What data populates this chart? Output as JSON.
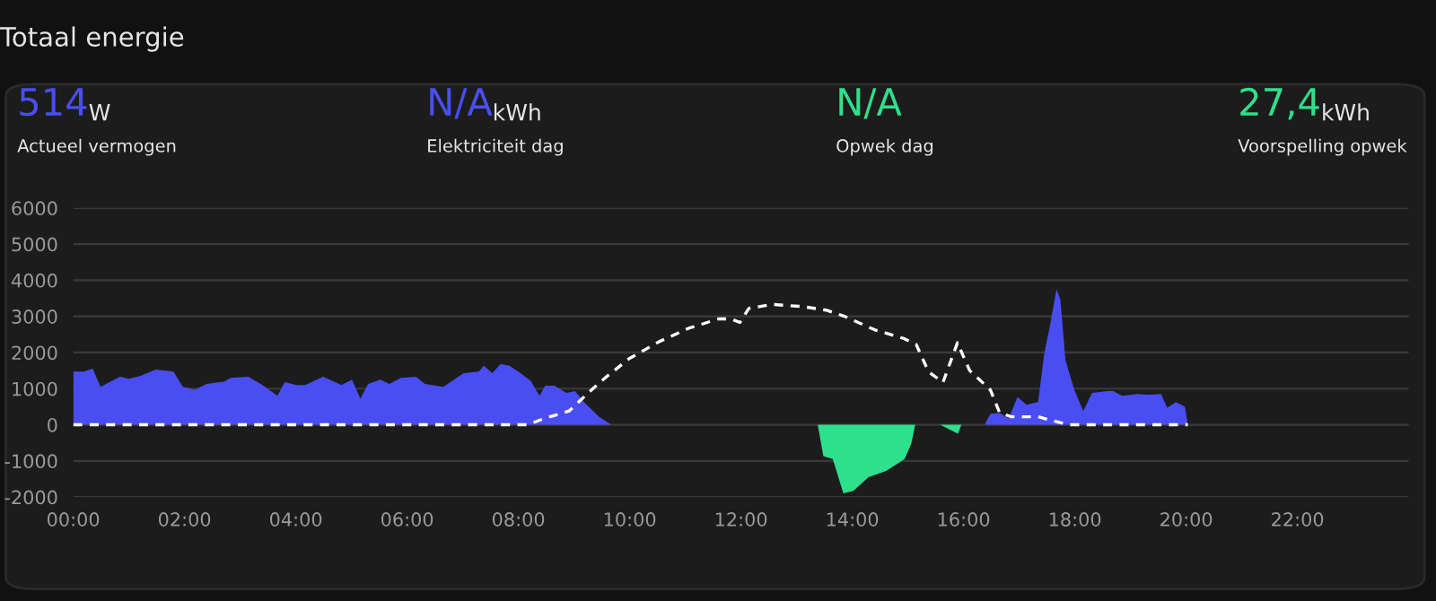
{
  "chart_data": {
    "type": "area",
    "title": "Totaal energie",
    "annotations": [
      "514",
      "W",
      "Actueel vermogen",
      "N/A",
      "kWh",
      "Elektriciteit dag",
      "N/A",
      "Opwek dag",
      "27,4",
      "kWh",
      "Voorspelling opwek"
    ],
    "xlim": [
      0,
      24
    ],
    "ylim": [
      -2000,
      6000
    ],
    "xticks": [
      {
        "value": 0,
        "label": "00:00"
      },
      {
        "value": 2,
        "label": "02:00"
      },
      {
        "value": 4,
        "label": "04:00"
      },
      {
        "value": 6,
        "label": "06:00"
      },
      {
        "value": 8,
        "label": "08:00"
      },
      {
        "value": 10,
        "label": "10:00"
      },
      {
        "value": 12,
        "label": "12:00"
      },
      {
        "value": 14,
        "label": "14:00"
      },
      {
        "value": 16,
        "label": "16:00"
      },
      {
        "value": 18,
        "label": "18:00"
      },
      {
        "value": 20,
        "label": "20:00"
      },
      {
        "value": 22,
        "label": "22:00"
      }
    ],
    "yticks": [
      -2000,
      -1000,
      0,
      1000,
      2000,
      3000,
      4000,
      5000,
      6000
    ],
    "grid": "y",
    "legend": false,
    "series": [
      {
        "color": "#4a4ef2",
        "x": [
          0,
          0.19,
          0.35,
          0.49,
          0.84,
          1.0,
          1.2,
          1.48,
          1.8,
          1.97,
          2.18,
          2.4,
          2.72,
          2.83,
          3.15,
          3.42,
          3.67,
          3.8,
          4.01,
          4.17,
          4.49,
          4.82,
          5.01,
          5.16,
          5.3,
          5.52,
          5.68,
          5.89,
          6.16,
          6.32,
          6.65,
          7.02,
          7.29,
          7.38,
          7.53,
          7.68,
          7.84,
          8.0,
          8.22,
          8.38,
          8.48,
          8.65,
          8.86,
          9.02,
          9.18,
          9.45,
          9.67,
          13.0,
          16.38,
          16.48,
          16.65,
          16.81,
          16.97,
          17.13,
          17.34,
          17.45,
          17.56,
          17.67,
          17.74,
          17.83,
          17.99,
          18.15,
          18.31,
          18.58,
          18.69,
          18.85,
          19.12,
          19.33,
          19.55,
          19.66,
          19.82,
          19.98,
          20.03
        ],
        "values": [
          1470,
          1470,
          1550,
          1050,
          1330,
          1270,
          1350,
          1530,
          1470,
          1050,
          970,
          1130,
          1200,
          1300,
          1330,
          1080,
          800,
          1180,
          1100,
          1100,
          1330,
          1100,
          1250,
          720,
          1130,
          1250,
          1130,
          1300,
          1330,
          1130,
          1050,
          1430,
          1470,
          1630,
          1430,
          1680,
          1630,
          1470,
          1220,
          800,
          1080,
          1080,
          880,
          930,
          630,
          220,
          0,
          null,
          0,
          300,
          330,
          170,
          770,
          550,
          630,
          1970,
          2800,
          3750,
          3470,
          1800,
          970,
          380,
          880,
          930,
          930,
          800,
          850,
          830,
          850,
          470,
          630,
          500,
          0
        ]
      },
      {
        "color": "#2ee08c",
        "x": [
          13.38,
          13.48,
          13.65,
          13.84,
          14.02,
          14.29,
          14.61,
          14.94,
          15.06,
          15.13,
          15.4,
          15.58,
          15.9,
          15.96
        ],
        "values": [
          0,
          -870,
          -950,
          -1900,
          -1830,
          -1450,
          -1280,
          -950,
          -530,
          0,
          null,
          0,
          -250,
          0
        ]
      },
      {
        "type": "line",
        "color": "#ffffff",
        "line_style": "dashed",
        "x": [
          0,
          8.16,
          8.48,
          8.91,
          9.29,
          9.56,
          9.99,
          10.53,
          11.06,
          11.6,
          11.82,
          11.98,
          12.14,
          12.57,
          13.11,
          13.54,
          13.86,
          14.4,
          14.94,
          15.15,
          15.37,
          15.63,
          15.89,
          16.11,
          16.48,
          16.65,
          16.86,
          17.34,
          17.56,
          17.88,
          20.03
        ],
        "values": [
          0,
          0,
          180,
          380,
          930,
          1300,
          1830,
          2300,
          2670,
          2930,
          2930,
          2830,
          3220,
          3330,
          3270,
          3170,
          3000,
          2630,
          2380,
          2220,
          1470,
          1170,
          2270,
          1500,
          970,
          330,
          220,
          220,
          130,
          0,
          0
        ]
      }
    ]
  }
}
